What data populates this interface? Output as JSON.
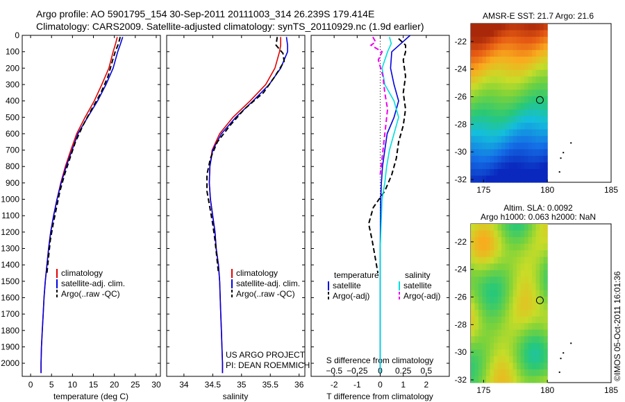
{
  "header": {
    "line1": "Argo profile: AO 5901795_154 30-Sep-2011 20111003_314 26.239S 179.414E",
    "line2": "Climatology: CARS2009. Satellite-adjusted climatology: synTS_20110929.nc (1.9d earlier)"
  },
  "colors": {
    "climatology": "#e00000",
    "satellite": "#0000dd",
    "argo": "#000000",
    "salinity_satellite": "#00dddd",
    "salinity_argo": "#ee00ee"
  },
  "chart_data": [
    {
      "type": "line",
      "id": "temperature-profile",
      "xlabel": "temperature (deg C)",
      "xlim": [
        -2,
        31
      ],
      "xticks": [
        0,
        5,
        10,
        15,
        20,
        25,
        30
      ],
      "ylim": [
        2080,
        0
      ],
      "yticks": [
        0,
        100,
        200,
        300,
        400,
        500,
        600,
        700,
        800,
        900,
        1000,
        1100,
        1200,
        1300,
        1400,
        1500,
        1600,
        1700,
        1800,
        1900,
        2000
      ],
      "legend_position": "lower-center",
      "series": [
        {
          "name": "climatology",
          "style": "solid",
          "color": "#e00000",
          "points": [
            [
              20.7,
              10
            ],
            [
              20.3,
              50
            ],
            [
              19.7,
              100
            ],
            [
              18.7,
              200
            ],
            [
              17.0,
              300
            ],
            [
              15.2,
              400
            ],
            [
              13.0,
              500
            ],
            [
              11.0,
              600
            ],
            [
              9.6,
              700
            ],
            [
              8.3,
              800
            ],
            [
              7.2,
              900
            ],
            [
              6.3,
              1000
            ],
            [
              5.5,
              1100
            ],
            [
              4.8,
              1200
            ],
            [
              4.3,
              1300
            ],
            [
              3.9,
              1400
            ],
            [
              3.5,
              1500
            ],
            [
              3.2,
              1600
            ],
            [
              3.0,
              1700
            ],
            [
              2.8,
              1800
            ],
            [
              2.6,
              1900
            ],
            [
              2.5,
              2000
            ],
            [
              2.5,
              2060
            ]
          ]
        },
        {
          "name": "satellite-adj. clim.",
          "style": "solid",
          "color": "#0000dd",
          "points": [
            [
              22.0,
              10
            ],
            [
              21.5,
              50
            ],
            [
              20.8,
              100
            ],
            [
              19.7,
              200
            ],
            [
              18.0,
              300
            ],
            [
              16.0,
              400
            ],
            [
              13.6,
              500
            ],
            [
              11.3,
              600
            ],
            [
              9.9,
              700
            ],
            [
              8.5,
              800
            ],
            [
              7.3,
              900
            ],
            [
              6.3,
              1000
            ],
            [
              5.5,
              1100
            ],
            [
              4.8,
              1200
            ],
            [
              4.3,
              1300
            ],
            [
              3.9,
              1400
            ],
            [
              3.5,
              1500
            ],
            [
              3.2,
              1600
            ],
            [
              3.0,
              1700
            ],
            [
              2.8,
              1800
            ],
            [
              2.6,
              1900
            ],
            [
              2.5,
              2000
            ],
            [
              2.5,
              2060
            ]
          ]
        },
        {
          "name": "Argo(..raw -QC)",
          "style": "dashed",
          "color": "#000000",
          "points": [
            [
              21.4,
              10
            ],
            [
              21.0,
              50
            ],
            [
              20.2,
              100
            ],
            [
              19.6,
              150
            ],
            [
              18.5,
              250
            ],
            [
              16.8,
              350
            ],
            [
              14.6,
              450
            ],
            [
              12.5,
              550
            ],
            [
              10.7,
              650
            ],
            [
              9.4,
              750
            ],
            [
              8.1,
              850
            ],
            [
              7.0,
              950
            ],
            [
              6.2,
              1050
            ],
            [
              5.4,
              1150
            ],
            [
              4.7,
              1250
            ],
            [
              4.3,
              1350
            ],
            [
              3.9,
              1450
            ]
          ]
        }
      ]
    },
    {
      "type": "line",
      "id": "salinity-profile",
      "xlabel": "salinity",
      "xlim": [
        33.7,
        36.1
      ],
      "xticks": [
        34,
        34.5,
        35,
        35.5,
        36
      ],
      "ylim": [
        2080,
        0
      ],
      "legend_position": "lower-center",
      "series": [
        {
          "name": "climatology",
          "style": "solid",
          "color": "#e00000",
          "points": [
            [
              35.68,
              10
            ],
            [
              35.68,
              60
            ],
            [
              35.66,
              100
            ],
            [
              35.58,
              200
            ],
            [
              35.42,
              300
            ],
            [
              35.15,
              400
            ],
            [
              34.85,
              500
            ],
            [
              34.62,
              600
            ],
            [
              34.49,
              700
            ],
            [
              34.45,
              800
            ],
            [
              34.44,
              900
            ],
            [
              34.46,
              1000
            ],
            [
              34.5,
              1100
            ],
            [
              34.54,
              1200
            ],
            [
              34.56,
              1300
            ],
            [
              34.6,
              1400
            ],
            [
              34.62,
              1500
            ],
            [
              34.63,
              1600
            ],
            [
              34.64,
              1700
            ],
            [
              34.65,
              1800
            ],
            [
              34.66,
              1900
            ],
            [
              34.67,
              2000
            ],
            [
              34.67,
              2060
            ]
          ]
        },
        {
          "name": "satellite-adj. clim.",
          "style": "solid",
          "color": "#0000dd",
          "points": [
            [
              35.78,
              10
            ],
            [
              35.8,
              60
            ],
            [
              35.8,
              100
            ],
            [
              35.68,
              200
            ],
            [
              35.48,
              300
            ],
            [
              35.2,
              400
            ],
            [
              34.9,
              500
            ],
            [
              34.65,
              600
            ],
            [
              34.5,
              700
            ],
            [
              34.45,
              800
            ],
            [
              34.44,
              900
            ],
            [
              34.46,
              1000
            ],
            [
              34.5,
              1100
            ],
            [
              34.54,
              1200
            ],
            [
              34.56,
              1300
            ],
            [
              34.6,
              1400
            ],
            [
              34.62,
              1500
            ],
            [
              34.63,
              1600
            ],
            [
              34.64,
              1700
            ],
            [
              34.65,
              1800
            ],
            [
              34.66,
              1900
            ],
            [
              34.67,
              2000
            ],
            [
              34.67,
              2060
            ]
          ]
        },
        {
          "name": "Argo(..raw -QC)",
          "style": "dashed",
          "color": "#000000",
          "points": [
            [
              35.62,
              10
            ],
            [
              35.6,
              60
            ],
            [
              35.72,
              110
            ],
            [
              35.74,
              160
            ],
            [
              35.58,
              250
            ],
            [
              35.38,
              350
            ],
            [
              35.05,
              450
            ],
            [
              34.8,
              550
            ],
            [
              34.58,
              650
            ],
            [
              34.46,
              750
            ],
            [
              34.4,
              850
            ],
            [
              34.4,
              950
            ],
            [
              34.45,
              1050
            ],
            [
              34.5,
              1150
            ],
            [
              34.54,
              1250
            ],
            [
              34.57,
              1350
            ],
            [
              34.6,
              1450
            ]
          ]
        }
      ]
    },
    {
      "type": "line",
      "id": "difference-profile",
      "xlabel": "T difference from climatology",
      "xlabel_top": "S difference from climatology",
      "xlim": [
        -3,
        3
      ],
      "xticks": [
        -2,
        -1,
        0,
        1,
        2
      ],
      "xticks_top": [
        -0.5,
        -0.25,
        0,
        0.25,
        0.5
      ],
      "xticks_top_labels": [
        "−0.5",
        "−0.25",
        "0",
        "0.25",
        "0.5"
      ],
      "ylim": [
        2080,
        0
      ],
      "zero_line": "dotted",
      "legend_position": "lower-center",
      "legend_header_temperature": "temperature",
      "legend_header_salinity": "salinity",
      "series": [
        {
          "name": "satellite",
          "group": "temperature",
          "style": "solid",
          "color": "#0000dd",
          "points": [
            [
              1.3,
              0
            ],
            [
              0.9,
              50
            ],
            [
              0.5,
              100
            ],
            [
              0.45,
              200
            ],
            [
              0.6,
              300
            ],
            [
              0.8,
              400
            ],
            [
              0.6,
              500
            ],
            [
              0.3,
              600
            ],
            [
              0.2,
              700
            ],
            [
              0.1,
              800
            ],
            [
              0.05,
              900
            ],
            [
              0.02,
              1000
            ],
            [
              0.0,
              1300
            ],
            [
              0.0,
              2060
            ]
          ]
        },
        {
          "name": "Argo(-adj)",
          "group": "temperature",
          "style": "dashed",
          "color": "#000000",
          "points": [
            [
              0.8,
              20
            ],
            [
              1.1,
              60
            ],
            [
              1.1,
              100
            ],
            [
              1.0,
              150
            ],
            [
              1.1,
              250
            ],
            [
              1.0,
              350
            ],
            [
              1.1,
              450
            ],
            [
              1.0,
              550
            ],
            [
              0.8,
              650
            ],
            [
              0.7,
              750
            ],
            [
              0.5,
              850
            ],
            [
              0.2,
              950
            ],
            [
              -0.3,
              1050
            ],
            [
              -0.5,
              1150
            ],
            [
              -0.35,
              1250
            ],
            [
              -0.1,
              1450
            ]
          ]
        },
        {
          "name": "satellite",
          "group": "salinity",
          "style": "solid",
          "color": "#00dddd",
          "points": [
            [
              0.1,
              10
            ],
            [
              0.12,
              50
            ],
            [
              0.08,
              100
            ],
            [
              0.02,
              200
            ],
            [
              0.05,
              300
            ],
            [
              0.15,
              400
            ],
            [
              0.2,
              500
            ],
            [
              0.15,
              600
            ],
            [
              0.1,
              700
            ],
            [
              0.07,
              800
            ],
            [
              0.05,
              900
            ],
            [
              0.02,
              1000
            ],
            [
              0.0,
              1300
            ],
            [
              0.0,
              2060
            ]
          ]
        },
        {
          "name": "Argo(-adj)",
          "group": "salinity",
          "style": "dashed",
          "color": "#ee00ee",
          "points": [
            [
              -0.08,
              10
            ],
            [
              -0.05,
              40
            ],
            [
              -0.1,
              60
            ],
            [
              0.02,
              100
            ],
            [
              -0.02,
              150
            ],
            [
              0.03,
              250
            ],
            [
              0.05,
              350
            ],
            [
              0.08,
              450
            ],
            [
              0.06,
              550
            ],
            [
              0.04,
              650
            ],
            [
              0.02,
              750
            ],
            [
              0.0,
              850
            ]
          ]
        }
      ]
    },
    {
      "type": "heatmap",
      "id": "sst-map",
      "title": "AMSR-E SST: 21.7 Argo: 21.6",
      "xlim": [
        174,
        185
      ],
      "ylim": [
        -32.2,
        -20.7
      ],
      "xticks": [
        175,
        180,
        185
      ],
      "yticks": [
        -22,
        -24,
        -26,
        -28,
        -30,
        -32
      ],
      "argo_position": [
        179.414,
        -26.239
      ]
    },
    {
      "type": "heatmap",
      "id": "sla-map",
      "title_line1": "Altim. SLA: 0.0092",
      "title_line2": "Argo h1000: 0.063 h2000: NaN",
      "xlim": [
        174,
        185
      ],
      "ylim": [
        -32.2,
        -20.7
      ],
      "xticks": [
        175,
        180,
        185
      ],
      "yticks": [
        -22,
        -24,
        -26,
        -28,
        -30,
        -32
      ],
      "argo_position": [
        179.414,
        -26.239
      ]
    }
  ],
  "credits": {
    "project": "US ARGO PROJECT",
    "pi": "PI: DEAN ROEMMICH",
    "stamp": "©IMOS 05-Oct-2011 16:01:36"
  }
}
